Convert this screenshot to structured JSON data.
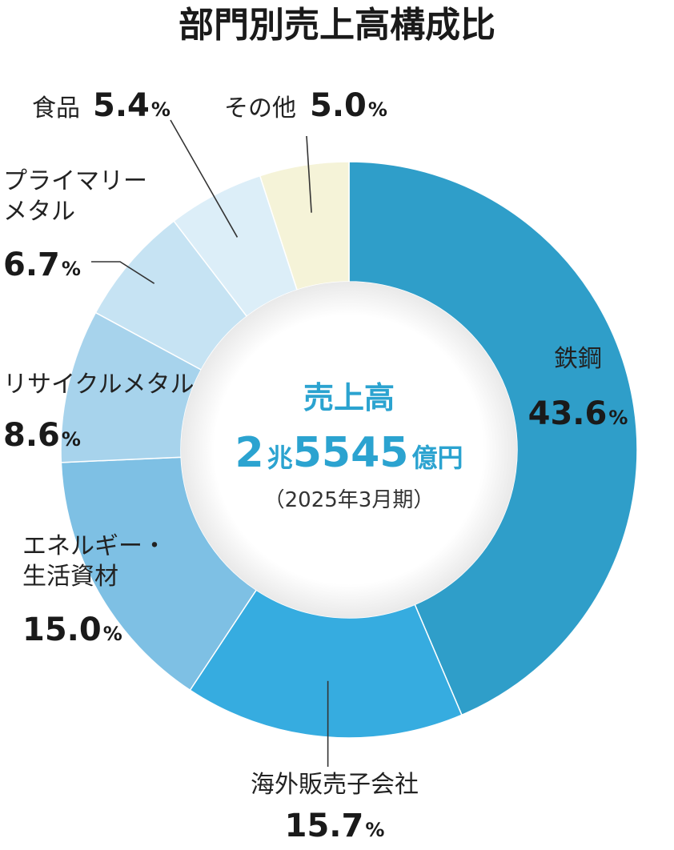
{
  "chart_data": {
    "type": "pie",
    "title": "部門別売上高構成比",
    "unit": "%",
    "slices": [
      {
        "label": [
          "鉄鋼"
        ],
        "value": 43.6,
        "value_text": "43.6",
        "color": "#2f9ec9"
      },
      {
        "label": [
          "海外販売子会社"
        ],
        "value": 15.7,
        "value_text": "15.7",
        "color": "#36ace0"
      },
      {
        "label": [
          "エネルギー・",
          "生活資材"
        ],
        "value": 15.0,
        "value_text": "15.0",
        "color": "#7ec0e4"
      },
      {
        "label": [
          "リサイクルメタル"
        ],
        "value": 8.6,
        "value_text": "8.6",
        "color": "#a7d3ec"
      },
      {
        "label": [
          "プライマリー",
          "メタル"
        ],
        "value": 6.7,
        "value_text": "6.7",
        "color": "#c6e3f3"
      },
      {
        "label": [
          "食品"
        ],
        "value": 5.4,
        "value_text": "5.4",
        "color": "#dceef8"
      },
      {
        "label": [
          "その他"
        ],
        "value": 5.0,
        "value_text": "5.0",
        "color": "#f5f3d8"
      }
    ],
    "center": {
      "label": "売上高",
      "value_prefix": "2",
      "value_prefix_unit": "兆",
      "value_main": "5545",
      "value_unit": "億円",
      "period": "（2025年3月期）"
    }
  }
}
